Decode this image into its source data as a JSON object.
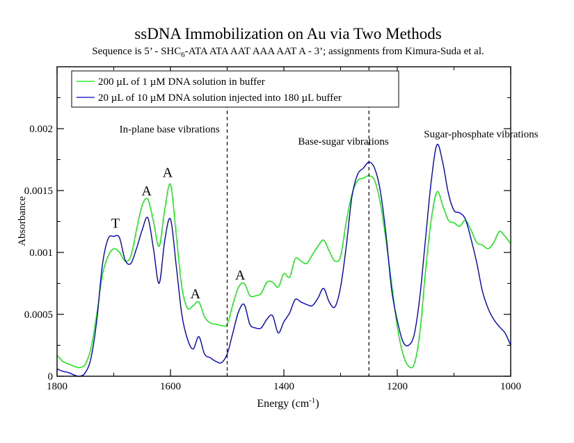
{
  "chart_data": {
    "type": "line",
    "title": "ssDNA Immobilization on Au via Two Methods",
    "subtitle": {
      "pre": "Sequence is 5’ - SHC",
      "sub": "6",
      "post": "-ATA ATA AAT AAA AAT A - 3’; assignments from Kimura-Suda et al."
    },
    "xlabel": {
      "pre": "Energy (cm",
      "sup": "-1",
      "post": ")"
    },
    "ylabel": "Absorbance",
    "xlim": [
      1800,
      1000
    ],
    "ylim": [
      0,
      0.0025
    ],
    "x_reversed": true,
    "grid": false,
    "legend_position": "top-left",
    "x_ticks": [
      "1800",
      "1600",
      "1400",
      "1200",
      "1000"
    ],
    "y_ticks": [
      "0",
      "0.0005",
      "0.001",
      "0.0015",
      "0.002"
    ],
    "vlines": [
      1500,
      1250
    ],
    "regions": [
      {
        "label": "In-plane base vibrations",
        "x": 1690,
        "y": 0.00197
      },
      {
        "label": "Base-sugar vibrations",
        "x": 1375,
        "y": 0.00187
      },
      {
        "label": "Sugar-phosphate vibrations",
        "x": 1153,
        "y": 0.00193
      }
    ],
    "peak_labels": [
      {
        "label": "T",
        "x": 1697,
        "y": 0.0012
      },
      {
        "label": "A",
        "x": 1642,
        "y": 0.00146
      },
      {
        "label": "A",
        "x": 1605,
        "y": 0.00161
      },
      {
        "label": "A",
        "x": 1556,
        "y": 0.00063
      },
      {
        "label": "A",
        "x": 1477,
        "y": 0.00078
      }
    ],
    "series": [
      {
        "name": "200 µL of 1 µM DNA solution in buffer",
        "color": "#00ee00",
        "x": [
          1800,
          1790,
          1780,
          1770,
          1760,
          1750,
          1740,
          1730,
          1720,
          1710,
          1700,
          1690,
          1680,
          1670,
          1660,
          1650,
          1640,
          1630,
          1620,
          1610,
          1600,
          1590,
          1580,
          1570,
          1560,
          1550,
          1540,
          1530,
          1520,
          1510,
          1500,
          1490,
          1480,
          1470,
          1460,
          1450,
          1440,
          1430,
          1420,
          1410,
          1400,
          1390,
          1380,
          1370,
          1360,
          1350,
          1340,
          1330,
          1320,
          1310,
          1300,
          1290,
          1280,
          1270,
          1260,
          1250,
          1240,
          1230,
          1220,
          1210,
          1200,
          1190,
          1180,
          1170,
          1160,
          1150,
          1140,
          1130,
          1120,
          1110,
          1100,
          1090,
          1080,
          1070,
          1060,
          1050,
          1040,
          1030,
          1020,
          1010,
          1000
        ],
        "y": [
          0.00017,
          0.00012,
          0.0001,
          8e-05,
          7e-05,
          0.0001,
          0.00023,
          0.0005,
          0.00082,
          0.00097,
          0.00103,
          0.001,
          0.00093,
          0.00097,
          0.00118,
          0.00138,
          0.00143,
          0.00125,
          0.00105,
          0.00135,
          0.00155,
          0.00115,
          0.00072,
          0.00055,
          0.00057,
          0.0006,
          0.00048,
          0.00043,
          0.00042,
          0.00041,
          0.00042,
          0.00058,
          0.00072,
          0.00075,
          0.00065,
          0.00065,
          0.00067,
          0.00076,
          0.00076,
          0.00072,
          0.00083,
          0.0008,
          0.00095,
          0.00093,
          0.00091,
          0.00098,
          0.00105,
          0.0011,
          0.00101,
          0.00093,
          0.00097,
          0.00125,
          0.00147,
          0.00158,
          0.0016,
          0.00162,
          0.00158,
          0.0014,
          0.0011,
          0.00075,
          0.0004,
          0.00018,
          8e-05,
          0.0001,
          0.00036,
          0.00086,
          0.00127,
          0.00149,
          0.00138,
          0.00126,
          0.00124,
          0.00121,
          0.00126,
          0.00118,
          0.00108,
          0.00106,
          0.00103,
          0.00108,
          0.00117,
          0.00113,
          0.00107
        ]
      },
      {
        "name": "20 µL of 10 µM DNA solution injected into 180 µL buffer",
        "color": "#0000cc",
        "x": [
          1800,
          1790,
          1780,
          1770,
          1760,
          1750,
          1740,
          1730,
          1720,
          1710,
          1700,
          1690,
          1680,
          1670,
          1660,
          1650,
          1640,
          1630,
          1620,
          1610,
          1600,
          1590,
          1580,
          1570,
          1560,
          1550,
          1540,
          1530,
          1520,
          1510,
          1500,
          1490,
          1480,
          1470,
          1460,
          1450,
          1440,
          1430,
          1420,
          1410,
          1400,
          1390,
          1380,
          1370,
          1360,
          1350,
          1340,
          1330,
          1320,
          1310,
          1300,
          1290,
          1280,
          1270,
          1260,
          1250,
          1240,
          1230,
          1220,
          1210,
          1200,
          1190,
          1180,
          1170,
          1160,
          1150,
          1140,
          1130,
          1120,
          1110,
          1100,
          1090,
          1080,
          1070,
          1060,
          1050,
          1040,
          1030,
          1020,
          1010,
          1000
        ],
        "y": [
          6e-05,
          4e-05,
          3e-05,
          1e-05,
          0,
          3e-05,
          0.00015,
          0.00045,
          0.0009,
          0.00111,
          0.00113,
          0.00112,
          0.00094,
          0.00091,
          0.00103,
          0.00118,
          0.00128,
          0.00103,
          0.00075,
          0.0011,
          0.00127,
          0.0009,
          0.0005,
          0.0003,
          0.00022,
          0.00032,
          0.00018,
          0.00015,
          0.00012,
          0.00011,
          0.00018,
          0.00035,
          0.00052,
          0.00058,
          0.00042,
          0.00039,
          0.00039,
          0.00046,
          0.00049,
          0.00035,
          0.00044,
          0.00051,
          0.00062,
          0.0006,
          0.00058,
          0.00057,
          0.00063,
          0.00071,
          0.0006,
          0.00056,
          0.00072,
          0.00105,
          0.00145,
          0.00163,
          0.00168,
          0.00173,
          0.00168,
          0.0015,
          0.00115,
          0.0007,
          0.00045,
          0.00028,
          0.00025,
          0.00034,
          0.00065,
          0.00112,
          0.00158,
          0.00187,
          0.00173,
          0.00148,
          0.00134,
          0.00132,
          0.00127,
          0.00111,
          0.00092,
          0.00069,
          0.00055,
          0.00046,
          0.0004,
          0.00035,
          0.00025
        ]
      }
    ]
  }
}
